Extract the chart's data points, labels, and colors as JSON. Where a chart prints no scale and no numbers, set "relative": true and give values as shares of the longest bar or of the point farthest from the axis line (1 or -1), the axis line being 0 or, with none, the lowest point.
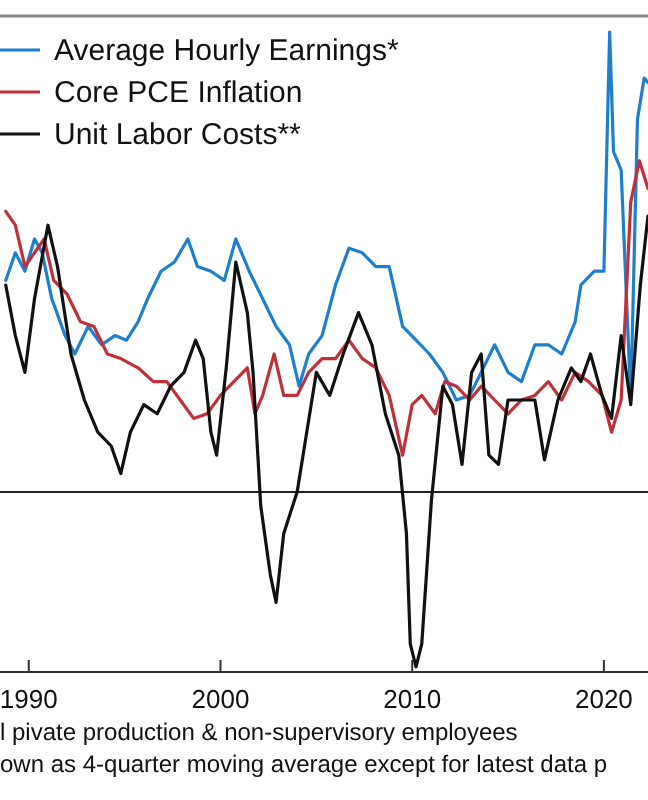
{
  "chart_data": {
    "type": "line",
    "relative": true,
    "legend": "top left",
    "grid": false,
    "marker": "none",
    "line_style": "solid",
    "xlim": [
      1988.5,
      2022.3
    ],
    "xticks": [
      1990,
      2000,
      2010,
      2020
    ],
    "annotations": [
      "l pivate production & non-supervisory employees",
      "own as 4-quarter moving average except for latest data p"
    ],
    "series": [
      {
        "name": "Average Hourly Earnings*",
        "color": "#1f7fcf",
        "x": [
          1988.8,
          1989.3,
          1989.8,
          1990.3,
          1990.7,
          1991.2,
          1991.9,
          1992.4,
          1993.1,
          1993.8,
          1994.5,
          1995.1,
          1995.7,
          1996.2,
          1996.9,
          1997.6,
          1998.3,
          1998.8,
          1999.5,
          2000.2,
          2000.8,
          2001.5,
          2002.2,
          2002.9,
          2003.6,
          2004.1,
          2004.6,
          2005.3,
          2006.0,
          2006.7,
          2007.4,
          2008.1,
          2008.8,
          2009.5,
          2010.2,
          2010.9,
          2011.6,
          2012.3,
          2013.0,
          2013.6,
          2014.3,
          2015.0,
          2015.7,
          2016.4,
          2017.1,
          2017.8,
          2018.5,
          2018.8,
          2019.5,
          2020.0,
          2020.3,
          2020.5,
          2020.9,
          2021.4,
          2021.75,
          2022.1,
          2022.3
        ],
        "values": [
          0.46,
          0.52,
          0.48,
          0.55,
          0.52,
          0.42,
          0.34,
          0.3,
          0.36,
          0.32,
          0.34,
          0.33,
          0.37,
          0.42,
          0.48,
          0.5,
          0.55,
          0.49,
          0.48,
          0.46,
          0.55,
          0.48,
          0.42,
          0.36,
          0.32,
          0.23,
          0.3,
          0.34,
          0.45,
          0.53,
          0.52,
          0.49,
          0.49,
          0.36,
          0.33,
          0.3,
          0.26,
          0.2,
          0.21,
          0.26,
          0.32,
          0.26,
          0.24,
          0.32,
          0.32,
          0.3,
          0.37,
          0.45,
          0.48,
          0.48,
          1,
          0.74,
          0.7,
          0.2,
          0.81,
          0.9,
          0.89
        ]
      },
      {
        "name": "Core PCE Inflation",
        "color": "#c0303a",
        "x": [
          1988.8,
          1989.3,
          1989.8,
          1990.3,
          1990.8,
          1991.3,
          1992.0,
          1992.7,
          1993.4,
          1994.1,
          1994.8,
          1995.7,
          1996.5,
          1997.2,
          1997.9,
          1998.6,
          1999.3,
          2000.0,
          2000.7,
          2001.4,
          2001.8,
          2002.2,
          2002.8,
          2003.3,
          2004.0,
          2004.6,
          2005.3,
          2006.0,
          2006.7,
          2007.4,
          2008.1,
          2008.8,
          2009.5,
          2010.0,
          2010.5,
          2011.2,
          2011.7,
          2012.3,
          2013.0,
          2013.6,
          2014.3,
          2015.0,
          2015.7,
          2016.4,
          2017.1,
          2017.8,
          2018.5,
          2019.2,
          2019.9,
          2020.4,
          2020.9,
          2021.4,
          2021.85,
          2022.3
        ],
        "values": [
          0.61,
          0.58,
          0.49,
          0.52,
          0.55,
          0.46,
          0.43,
          0.37,
          0.36,
          0.3,
          0.29,
          0.27,
          0.24,
          0.24,
          0.2,
          0.16,
          0.17,
          0.21,
          0.24,
          0.27,
          0.17,
          0.21,
          0.3,
          0.21,
          0.21,
          0.26,
          0.29,
          0.29,
          0.33,
          0.29,
          0.27,
          0.21,
          0.08,
          0.19,
          0.21,
          0.17,
          0.24,
          0.23,
          0.2,
          0.23,
          0.2,
          0.17,
          0.2,
          0.21,
          0.24,
          0.2,
          0.26,
          0.24,
          0.21,
          0.13,
          0.2,
          0.63,
          0.72,
          0.66
        ]
      },
      {
        "name": "Unit Labor Costs**",
        "color": "#111111",
        "x": [
          1988.8,
          1989.3,
          1989.8,
          1990.3,
          1991.0,
          1991.5,
          1992.2,
          1992.9,
          1993.6,
          1994.3,
          1994.8,
          1995.3,
          1996.0,
          1996.7,
          1997.4,
          1998.1,
          1998.7,
          1999.1,
          1999.5,
          1999.8,
          2000.3,
          2000.8,
          2001.4,
          2001.7,
          2002.1,
          2002.6,
          2002.9,
          2003.3,
          2004.0,
          2004.5,
          2005.0,
          2005.7,
          2006.4,
          2007.2,
          2007.9,
          2008.6,
          2009.3,
          2009.7,
          2009.9,
          2010.2,
          2010.5,
          2011.0,
          2011.6,
          2012.1,
          2012.6,
          2013.1,
          2013.6,
          2014.0,
          2014.5,
          2015.0,
          2015.7,
          2016.4,
          2016.9,
          2017.6,
          2018.3,
          2018.8,
          2019.3,
          2019.9,
          2020.4,
          2020.9,
          2021.4,
          2021.9,
          2022.3
        ],
        "values": [
          0.45,
          0.34,
          0.26,
          0.42,
          0.58,
          0.49,
          0.3,
          0.2,
          0.13,
          0.1,
          0.04,
          0.13,
          0.19,
          0.17,
          0.23,
          0.26,
          0.33,
          0.29,
          0.13,
          0.08,
          0.27,
          0.5,
          0.39,
          0.26,
          -0.03,
          -0.18,
          -0.24,
          -0.09,
          0,
          0.13,
          0.26,
          0.21,
          0.3,
          0.39,
          0.32,
          0.17,
          0.08,
          -0.09,
          -0.33,
          -0.38,
          -0.33,
          -0.02,
          0.23,
          0.19,
          0.06,
          0.26,
          0.3,
          0.08,
          0.06,
          0.2,
          0.2,
          0.2,
          0.07,
          0.2,
          0.27,
          0.24,
          0.3,
          0.21,
          0.16,
          0.34,
          0.19,
          0.45,
          0.6
        ]
      }
    ]
  }
}
